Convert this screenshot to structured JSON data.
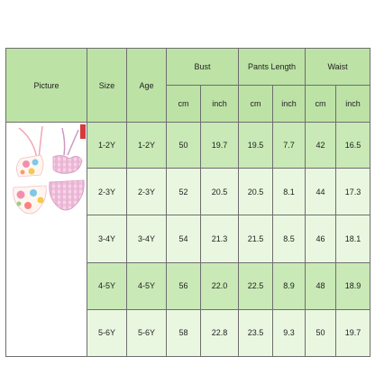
{
  "headers": {
    "picture": "Picture",
    "size": "Size",
    "age": "Age",
    "bust": "Bust",
    "pants_length": "Pants Length",
    "waist": "Waist",
    "cm": "cm",
    "inch": "inch"
  },
  "rows": [
    {
      "size": "1-2Y",
      "age": "1-2Y",
      "bust_cm": "50",
      "bust_inch": "19.7",
      "pants_cm": "19.5",
      "pants_inch": "7.7",
      "waist_cm": "42",
      "waist_inch": "16.5"
    },
    {
      "size": "2-3Y",
      "age": "2-3Y",
      "bust_cm": "52",
      "bust_inch": "20.5",
      "pants_cm": "20.5",
      "pants_inch": "8.1",
      "waist_cm": "44",
      "waist_inch": "17.3"
    },
    {
      "size": "3-4Y",
      "age": "3-4Y",
      "bust_cm": "54",
      "bust_inch": "21.3",
      "pants_cm": "21.5",
      "pants_inch": "8.5",
      "waist_cm": "46",
      "waist_inch": "18.1"
    },
    {
      "size": "4-5Y",
      "age": "4-5Y",
      "bust_cm": "56",
      "bust_inch": "22.0",
      "pants_cm": "22.5",
      "pants_inch": "8.9",
      "waist_cm": "48",
      "waist_inch": "18.9"
    },
    {
      "size": "5-6Y",
      "age": "5-6Y",
      "bust_cm": "58",
      "bust_inch": "22.8",
      "pants_cm": "23.5",
      "pants_inch": "9.3",
      "waist_cm": "50",
      "waist_inch": "19.7"
    }
  ],
  "colors": {
    "header": "#bde2a6",
    "row_dark": "#c9e9b6",
    "row_light": "#eaf7e0",
    "border": "#6e6e6e"
  },
  "picture_icon": "floral-and-gingham-swimsuit-image"
}
